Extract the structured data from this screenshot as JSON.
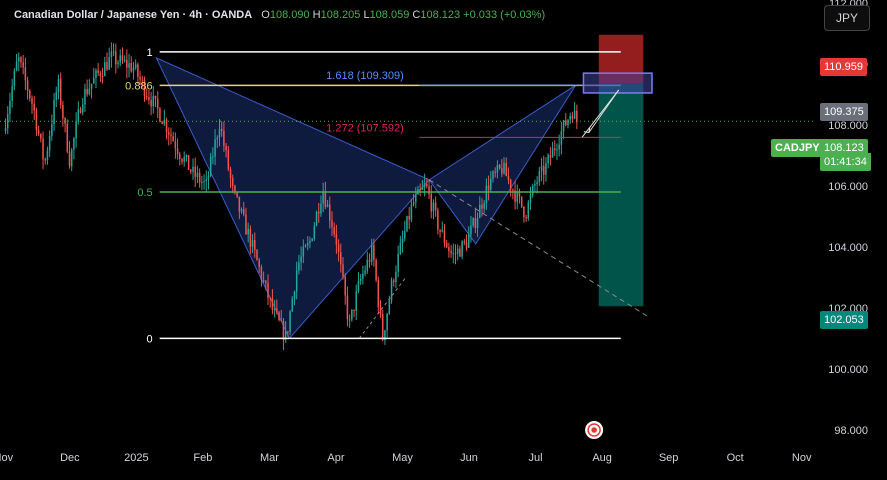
{
  "header": {
    "symbol": "Canadian Dollar / Japanese Yen · 4h · OANDA",
    "o_label": "O",
    "o_value": "108.090",
    "h_label": "H",
    "h_value": "108.205",
    "l_label": "L",
    "l_value": "108.059",
    "c_label": "C",
    "c_value": "108.123",
    "change": "+0.033 (+0.03%)"
  },
  "currency_button": "JPY",
  "price_tags": {
    "stop": "110.959",
    "target_level": "109.375",
    "symbol_tag": "CADJPY",
    "last_price": "108.123",
    "countdown": "01:41:34",
    "take_profit": "102.053"
  },
  "fib_labels": {
    "one": "1",
    "point886": "0.886",
    "half": "0.5",
    "zero": "0",
    "ext1618": "1.618 (109.309)",
    "ext1272": "1.272 (107.592)"
  },
  "colors": {
    "background": "#000000",
    "up": "#26a69a",
    "down": "#ef5350",
    "pattern_fill": "#1e3a8a",
    "stop_zone": "#c62828",
    "target_zone": "#00695c",
    "fib_yellow": "#e6d96b",
    "fib_green": "#4caf50",
    "fib_red": "#e91e63",
    "ext_blue": "#5b8cff"
  },
  "chart_data": {
    "type": "candlestick",
    "y_axis": {
      "ticks": [
        "112.000",
        "110.000",
        "108.000",
        "106.000",
        "104.000",
        "102.000",
        "100.000",
        "98.000"
      ],
      "values": [
        112,
        110,
        108,
        106,
        104,
        102,
        100,
        98
      ],
      "range": [
        97.5,
        112.1
      ]
    },
    "x_axis": {
      "ticks": [
        "Nov",
        "Dec",
        "2025",
        "Feb",
        "Mar",
        "Apr",
        "May",
        "Jun",
        "Jul",
        "Aug",
        "Sep",
        "Oct",
        "Nov"
      ],
      "positions": [
        0,
        1,
        2,
        3,
        4,
        5,
        6,
        7,
        8,
        9,
        10,
        11,
        12
      ],
      "range": [
        -0.05,
        12.2
      ]
    },
    "price_path": [
      [
        0.0,
        107.8
      ],
      [
        0.22,
        110.2
      ],
      [
        0.45,
        108.6
      ],
      [
        0.62,
        106.7
      ],
      [
        0.82,
        109.4
      ],
      [
        1.0,
        106.8
      ],
      [
        1.18,
        108.9
      ],
      [
        1.4,
        109.6
      ],
      [
        1.62,
        110.2
      ],
      [
        1.95,
        109.9
      ],
      [
        2.15,
        109.1
      ],
      [
        2.4,
        108.2
      ],
      [
        2.65,
        107.1
      ],
      [
        2.85,
        106.4
      ],
      [
        3.05,
        106.0
      ],
      [
        3.25,
        108.1
      ],
      [
        3.45,
        105.8
      ],
      [
        3.7,
        104.3
      ],
      [
        3.9,
        102.9
      ],
      [
        4.05,
        101.9
      ],
      [
        4.25,
        101.0
      ],
      [
        4.42,
        103.4
      ],
      [
        4.6,
        104.1
      ],
      [
        4.8,
        105.9
      ],
      [
        5.0,
        104.3
      ],
      [
        5.2,
        101.4
      ],
      [
        5.35,
        102.8
      ],
      [
        5.55,
        103.9
      ],
      [
        5.7,
        101.0
      ],
      [
        5.85,
        102.9
      ],
      [
        6.0,
        104.2
      ],
      [
        6.15,
        105.4
      ],
      [
        6.35,
        106.0
      ],
      [
        6.55,
        104.6
      ],
      [
        6.75,
        103.7
      ],
      [
        6.95,
        104.1
      ],
      [
        7.1,
        104.9
      ],
      [
        7.3,
        106.1
      ],
      [
        7.5,
        106.6
      ],
      [
        7.7,
        105.7
      ],
      [
        7.85,
        105.1
      ],
      [
        8.0,
        106.1
      ],
      [
        8.15,
        106.6
      ],
      [
        8.35,
        107.6
      ],
      [
        8.55,
        108.5
      ],
      [
        8.62,
        108.12
      ]
    ],
    "pattern": {
      "X": [
        2.3,
        110.2
      ],
      "A": [
        4.3,
        101.0
      ],
      "B": [
        6.4,
        106.2
      ],
      "C": [
        7.1,
        104.1
      ],
      "D": [
        8.6,
        109.3
      ]
    },
    "fib_retracement": {
      "x_range": [
        2.35,
        9.28
      ],
      "levels": [
        {
          "ratio": "1",
          "price": 110.4
        },
        {
          "ratio": "0.886",
          "price": 109.3
        },
        {
          "ratio": "0.5",
          "price": 105.8
        },
        {
          "ratio": "0",
          "price": 101.0
        }
      ]
    },
    "xabcd_extension": {
      "x_range": [
        6.25,
        9.28
      ],
      "levels": [
        {
          "ratio": "1.618",
          "price": 109.309
        },
        {
          "ratio": "1.272",
          "price": 107.592
        }
      ]
    },
    "short_position": {
      "x_range": [
        8.95,
        9.62
      ],
      "entry": 109.375,
      "stop": 110.959,
      "target": 102.053
    },
    "projection_line": {
      "from": [
        6.4,
        106.2
      ],
      "to": [
        9.7,
        101.7
      ]
    },
    "last_price": 108.123
  }
}
